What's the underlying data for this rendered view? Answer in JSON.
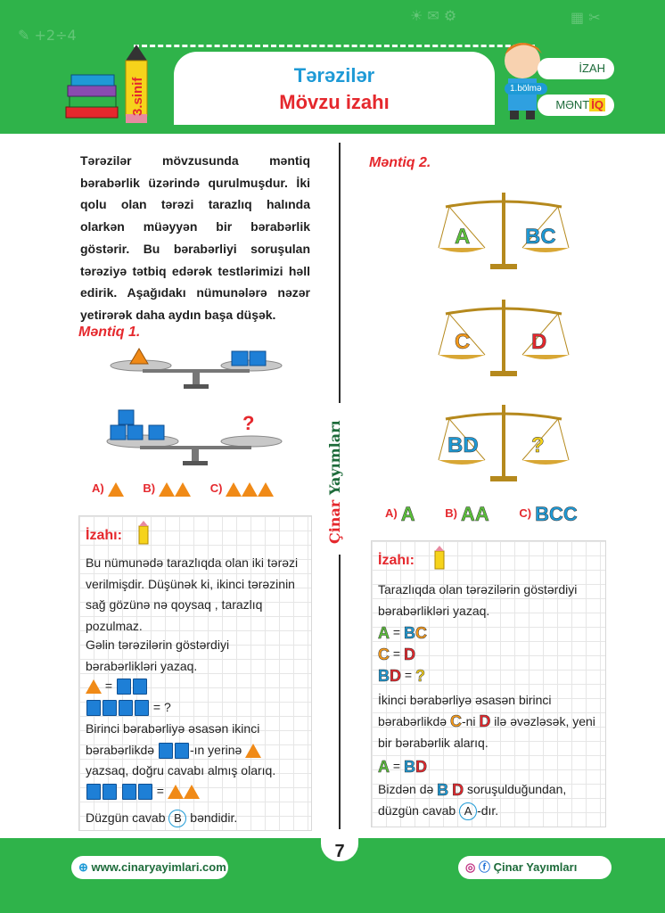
{
  "header": {
    "title": "Tərəzilər",
    "subtitle": "Mövzu izahı",
    "grade": "3.sinif",
    "section": "1.bölmə",
    "tag_izah": "İZAH",
    "tag_mentiq_prefix": "MƏNT",
    "tag_mentiq_hl": "İQ"
  },
  "left": {
    "intro": "Tərəzilər mövzusunda məntiq bərabərlik üzərində qurulmuşdur. İki qolu olan tərəzi tarazlıq halında olarkən müəyyən bir bərabərlik göstərir. Bu bərabərliyi soruşulan tərəziyə tətbiq edərək testlərimizi həll edirik. Aşağıdakı nümunələrə nəzər yetirərək daha aydın başa düşək.",
    "mentiq_heading": "Məntiq 1.",
    "question_mark": "?",
    "options": [
      "A)",
      "B)",
      "C)"
    ],
    "izah": {
      "title": "İzahı:",
      "p1": "Bu nümunədə tarazlıqda olan iki tərəzi verilmişdir. Düşünək ki, ikinci tərəzinin sağ gözünə nə qoysaq , tarazlıq pozulmaz.",
      "p2": "Gəlin tərəzilərin göstərdiyi bərabərlikləri yazaq.",
      "eq_sign": "=",
      "eq2_tail": "= ?",
      "p3_a": "Birinci bərabərliyə əsasən ikinci bərabərlikdə",
      "p3_b": "-ın yerinə",
      "p3_c": "yazsaq, doğru cavabı almış olarıq.",
      "final_a": "Düzgün cavab",
      "final_ans": "B",
      "final_b": "bəndidir."
    }
  },
  "right": {
    "mentiq_heading": "Məntiq 2.",
    "scale1": {
      "left": "A",
      "right": "BC"
    },
    "scale2": {
      "left": "C",
      "right": "D"
    },
    "scale3": {
      "left": "BD",
      "right": "?"
    },
    "options": [
      {
        "label": "A)",
        "value": "A"
      },
      {
        "label": "B)",
        "value": "AA"
      },
      {
        "label": "C)",
        "value": "BCC"
      }
    ],
    "izah": {
      "title": "İzahı:",
      "p1": "Tarazlıqda olan tərəzilərin göstərdiyi bərabərlikləri yazaq.",
      "eq_sign": "=",
      "p2_a": "İkinci bərabərliyə əsasən birinci bərabərlikdə",
      "p2_b": "-ni",
      "p2_c": "ilə əvəzləsək, yeni bir bərabərlik alarıq.",
      "p3_a": "Bizdən də",
      "p3_b": "soruşulduğundan,",
      "p3_c": "düzgün cavab",
      "p3_ans": "A",
      "p3_d": "-dır."
    }
  },
  "brand_vertical": {
    "a": "Çinar",
    "b": "Yayımları"
  },
  "footer": {
    "page": "7",
    "website": "www.cinaryayimlari.com",
    "social": "Çinar Yayımları"
  },
  "colors": {
    "green": "#2fb34a",
    "red": "#e5282d",
    "blue": "#1e9ad6",
    "orange": "#f08a17"
  }
}
